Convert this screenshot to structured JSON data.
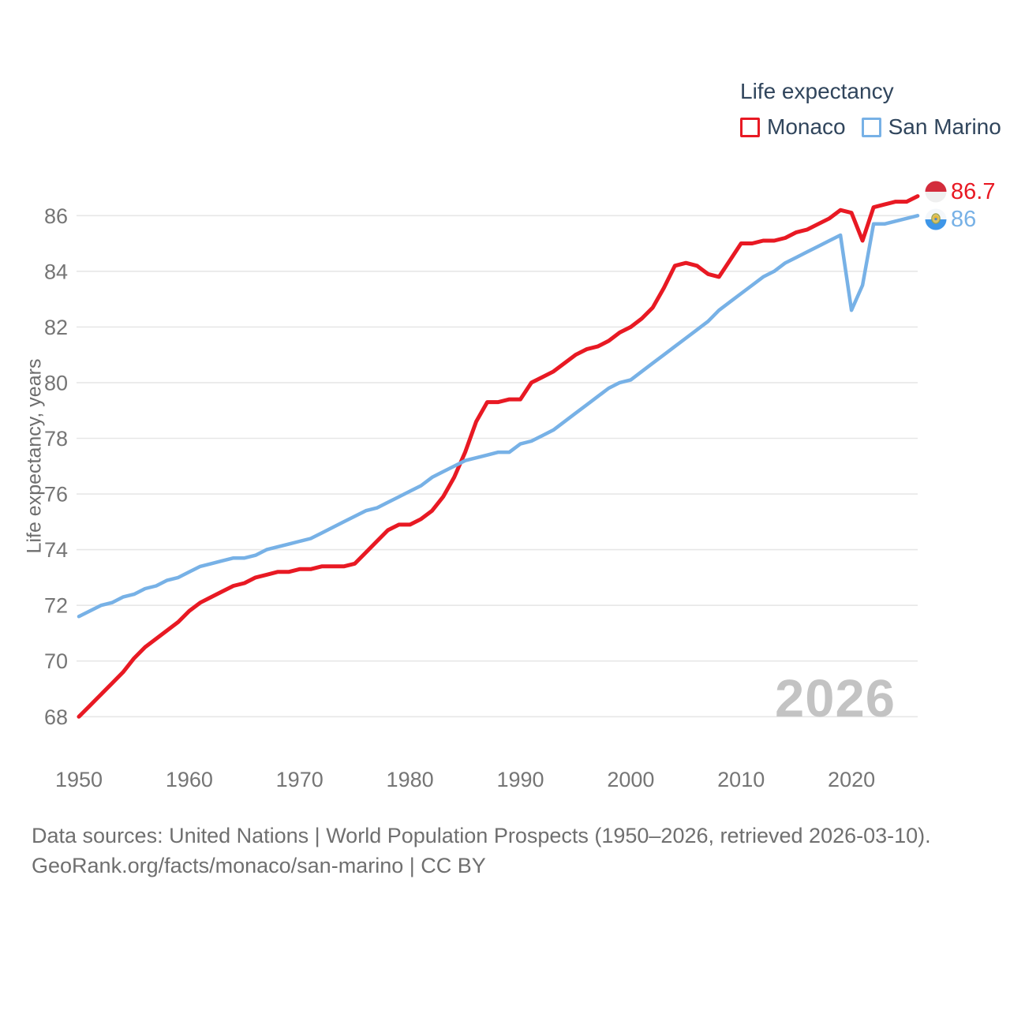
{
  "legend": {
    "title": "Life expectancy",
    "items": [
      {
        "label": "Monaco",
        "color": "#e81923"
      },
      {
        "label": "San Marino",
        "color": "#77b1e6"
      }
    ]
  },
  "y_axis": {
    "title": "Life expectancy, years"
  },
  "watermark": "2026",
  "end_labels": {
    "monaco": "86.7",
    "san_marino": "86"
  },
  "footer": {
    "line1": "Data sources: United Nations | World Population Prospects (1950–2026, retrieved 2026-03-10).",
    "line2": "GeoRank.org/facts/monaco/san-marino | CC BY"
  },
  "colors": {
    "monaco_line": "#e81923",
    "san_marino_line": "#77b1e6",
    "gridline": "#e7e7e7",
    "tick_text": "#757575",
    "legend_text": "#30455c",
    "watermark_text": "#c3c3c3"
  },
  "chart_data": {
    "type": "line",
    "title": "Life expectancy",
    "xlabel": "",
    "ylabel": "Life expectancy, years",
    "xlim": [
      1950,
      2026
    ],
    "ylim": [
      67,
      87.5
    ],
    "xticks": [
      1950,
      1960,
      1970,
      1980,
      1990,
      2000,
      2010,
      2020
    ],
    "yticks": [
      68,
      70,
      72,
      74,
      76,
      78,
      80,
      82,
      84,
      86
    ],
    "grid": "horizontal",
    "legend_position": "top-right",
    "x": [
      1950,
      1951,
      1952,
      1953,
      1954,
      1955,
      1956,
      1957,
      1958,
      1959,
      1960,
      1961,
      1962,
      1963,
      1964,
      1965,
      1966,
      1967,
      1968,
      1969,
      1970,
      1971,
      1972,
      1973,
      1974,
      1975,
      1976,
      1977,
      1978,
      1979,
      1980,
      1981,
      1982,
      1983,
      1984,
      1985,
      1986,
      1987,
      1988,
      1989,
      1990,
      1991,
      1992,
      1993,
      1994,
      1995,
      1996,
      1997,
      1998,
      1999,
      2000,
      2001,
      2002,
      2003,
      2004,
      2005,
      2006,
      2007,
      2008,
      2009,
      2010,
      2011,
      2012,
      2013,
      2014,
      2015,
      2016,
      2017,
      2018,
      2019,
      2020,
      2021,
      2022,
      2023,
      2024,
      2025,
      2026
    ],
    "series": [
      {
        "name": "Monaco",
        "color": "#e81923",
        "end_value": 86.7,
        "values": [
          68.0,
          68.4,
          68.8,
          69.2,
          69.6,
          70.1,
          70.5,
          70.8,
          71.1,
          71.4,
          71.8,
          72.1,
          72.3,
          72.5,
          72.7,
          72.8,
          73.0,
          73.1,
          73.2,
          73.2,
          73.3,
          73.3,
          73.4,
          73.4,
          73.4,
          73.5,
          73.9,
          74.3,
          74.7,
          74.9,
          74.9,
          75.1,
          75.4,
          75.9,
          76.6,
          77.5,
          78.6,
          79.3,
          79.3,
          79.4,
          79.4,
          80.0,
          80.2,
          80.4,
          80.7,
          81.0,
          81.2,
          81.3,
          81.5,
          81.8,
          82.0,
          82.3,
          82.7,
          83.4,
          84.2,
          84.3,
          84.2,
          83.9,
          83.8,
          84.4,
          85.0,
          85.0,
          85.1,
          85.1,
          85.2,
          85.4,
          85.5,
          85.7,
          85.9,
          86.2,
          86.1,
          85.1,
          86.3,
          86.4,
          86.5,
          86.5,
          86.7
        ]
      },
      {
        "name": "San Marino",
        "color": "#77b1e6",
        "end_value": 86.0,
        "values": [
          71.6,
          71.8,
          72.0,
          72.1,
          72.3,
          72.4,
          72.6,
          72.7,
          72.9,
          73.0,
          73.2,
          73.4,
          73.5,
          73.6,
          73.7,
          73.7,
          73.8,
          74.0,
          74.1,
          74.2,
          74.3,
          74.4,
          74.6,
          74.8,
          75.0,
          75.2,
          75.4,
          75.5,
          75.7,
          75.9,
          76.1,
          76.3,
          76.6,
          76.8,
          77.0,
          77.2,
          77.3,
          77.4,
          77.5,
          77.5,
          77.8,
          77.9,
          78.1,
          78.3,
          78.6,
          78.9,
          79.2,
          79.5,
          79.8,
          80.0,
          80.1,
          80.4,
          80.7,
          81.0,
          81.3,
          81.6,
          81.9,
          82.2,
          82.6,
          82.9,
          83.2,
          83.5,
          83.8,
          84.0,
          84.3,
          84.5,
          84.7,
          84.9,
          85.1,
          85.3,
          82.6,
          83.5,
          85.7,
          85.7,
          85.8,
          85.9,
          86.0
        ]
      }
    ]
  }
}
